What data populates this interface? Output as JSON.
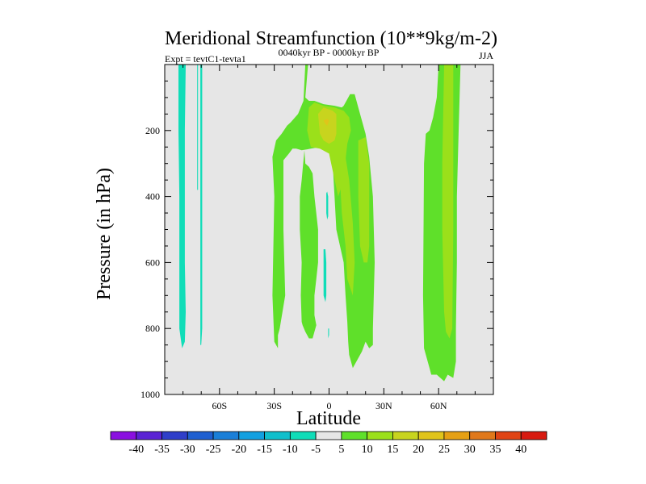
{
  "chart_data": {
    "type": "contour",
    "title": "Meridional Streamfunction (10**9kg/m-2)",
    "subtitle_left": "Expt = tevtC1-tevta1",
    "subtitle_center": "0040kyr BP - 0000kyr BP",
    "subtitle_right": "JJA",
    "xlabel": "Latitude",
    "ylabel": "Pressure (in hPa)",
    "xlim": [
      -90,
      90
    ],
    "ylim": [
      1000,
      0
    ],
    "x_ticks": [
      {
        "value": -60,
        "label": "60S"
      },
      {
        "value": -30,
        "label": "30S"
      },
      {
        "value": 0,
        "label": "0"
      },
      {
        "value": 30,
        "label": "30N"
      },
      {
        "value": 60,
        "label": "60N"
      }
    ],
    "y_ticks": [
      {
        "value": 200,
        "label": "200"
      },
      {
        "value": 400,
        "label": "400"
      },
      {
        "value": 600,
        "label": "600"
      },
      {
        "value": 800,
        "label": "800"
      },
      {
        "value": 1000,
        "label": "1000"
      }
    ],
    "background_color": "#e6e6e6",
    "contour_regions": [
      {
        "name": "sh-polar-negative-1",
        "level": -7.5,
        "polygon": [
          [
            -82.5,
            0
          ],
          [
            -78.5,
            0
          ],
          [
            -79,
            200
          ],
          [
            -79,
            600
          ],
          [
            -78.5,
            750
          ],
          [
            -79,
            840
          ],
          [
            -80.5,
            860
          ],
          [
            -82,
            800
          ],
          [
            -82,
            400
          ],
          [
            -82.5,
            200
          ]
        ]
      },
      {
        "name": "sh-polar-negative-2",
        "level": -7.5,
        "polygon": [
          [
            -70.5,
            0
          ],
          [
            -69.5,
            0
          ],
          [
            -69.5,
            400
          ],
          [
            -69.5,
            800
          ],
          [
            -70,
            850
          ],
          [
            -70.5,
            850
          ],
          [
            -70.5,
            400
          ]
        ]
      },
      {
        "name": "sh-polar-negative-sliver",
        "level": -7.5,
        "polygon": [
          [
            -72.2,
            0
          ],
          [
            -71.8,
            0
          ],
          [
            -71.8,
            380
          ],
          [
            -72.2,
            380
          ]
        ]
      },
      {
        "name": "eq-positive-main",
        "level": 7.5,
        "polygon": [
          [
            -13,
            0
          ],
          [
            -11.5,
            0
          ],
          [
            -13,
            100
          ],
          [
            -11,
            110
          ],
          [
            -8,
            110
          ],
          [
            -3,
            120
          ],
          [
            3,
            125
          ],
          [
            7,
            130
          ],
          [
            8,
            125
          ],
          [
            9.5,
            110
          ],
          [
            11.5,
            90
          ],
          [
            14,
            90
          ],
          [
            17,
            150
          ],
          [
            20,
            210
          ],
          [
            22,
            280
          ],
          [
            24,
            400
          ],
          [
            25,
            600
          ],
          [
            24,
            800
          ],
          [
            24,
            850
          ],
          [
            22,
            860
          ],
          [
            20,
            840
          ],
          [
            18,
            870
          ],
          [
            15,
            900
          ],
          [
            13,
            920
          ],
          [
            11,
            880
          ],
          [
            10.5,
            840
          ],
          [
            10,
            780
          ],
          [
            9,
            700
          ],
          [
            8,
            600
          ],
          [
            4,
            500
          ],
          [
            3,
            400
          ],
          [
            2,
            300
          ],
          [
            0.5,
            260
          ],
          [
            -2,
            250
          ],
          [
            -5,
            250
          ],
          [
            -10,
            255
          ],
          [
            -15,
            260
          ],
          [
            -18,
            255
          ],
          [
            -20,
            255
          ],
          [
            -22,
            270
          ],
          [
            -25,
            290
          ],
          [
            -25,
            500
          ],
          [
            -24,
            700
          ],
          [
            -27,
            800
          ],
          [
            -28,
            820
          ],
          [
            -28,
            860
          ],
          [
            -30,
            840
          ],
          [
            -31,
            700
          ],
          [
            -30,
            400
          ],
          [
            -31,
            280
          ],
          [
            -29,
            230
          ],
          [
            -26,
            210
          ],
          [
            -23,
            185
          ],
          [
            -21,
            175
          ],
          [
            -17,
            150
          ],
          [
            -14,
            110
          ]
        ]
      },
      {
        "name": "eq-positive-lower",
        "level": 7.5,
        "polygon": [
          [
            -13.5,
            260
          ],
          [
            -13,
            300
          ],
          [
            -11,
            310
          ],
          [
            -9,
            330
          ],
          [
            -8,
            400
          ],
          [
            -6,
            500
          ],
          [
            -6,
            600
          ],
          [
            -7,
            650
          ],
          [
            -8,
            700
          ],
          [
            -8,
            760
          ],
          [
            -7,
            790
          ],
          [
            -8,
            810
          ],
          [
            -9,
            830
          ],
          [
            -11,
            830
          ],
          [
            -13,
            810
          ],
          [
            -14.5,
            790
          ],
          [
            -15,
            780
          ],
          [
            -15.5,
            700
          ],
          [
            -15,
            600
          ],
          [
            -16,
            500
          ],
          [
            -16,
            400
          ],
          [
            -15,
            350
          ],
          [
            -14.5,
            320
          ]
        ]
      },
      {
        "name": "nh-positive-band",
        "level": 7.5,
        "polygon": [
          [
            60,
            0
          ],
          [
            72,
            0
          ],
          [
            71,
            200
          ],
          [
            70,
            400
          ],
          [
            70,
            600
          ],
          [
            69.5,
            800
          ],
          [
            69.5,
            900
          ],
          [
            68,
            950
          ],
          [
            65,
            940
          ],
          [
            63,
            960
          ],
          [
            59,
            940
          ],
          [
            56,
            940
          ],
          [
            55,
            920
          ],
          [
            52,
            860
          ],
          [
            51.5,
            700
          ],
          [
            52,
            300
          ],
          [
            53,
            210
          ],
          [
            55,
            200
          ],
          [
            57,
            160
          ],
          [
            59,
            100
          ]
        ]
      },
      {
        "name": "eq-level-12-core",
        "level": 12.5,
        "polygon": [
          [
            -11,
            130
          ],
          [
            -8,
            115
          ],
          [
            -3,
            125
          ],
          [
            3,
            130
          ],
          [
            8,
            140
          ],
          [
            11,
            160
          ],
          [
            12,
            200
          ],
          [
            10,
            240
          ],
          [
            9,
            290
          ],
          [
            8,
            350
          ],
          [
            5,
            400
          ],
          [
            0,
            270
          ],
          [
            -5,
            255
          ],
          [
            -10,
            250
          ],
          [
            -12,
            200
          ]
        ]
      },
      {
        "name": "eq-level-12-lower",
        "level": 12.5,
        "polygon": [
          [
            6,
            280
          ],
          [
            9,
            280
          ],
          [
            11,
            350
          ],
          [
            13,
            480
          ],
          [
            14,
            600
          ],
          [
            13,
            700
          ],
          [
            10,
            650
          ],
          [
            9,
            550
          ],
          [
            7,
            450
          ],
          [
            6,
            350
          ]
        ]
      },
      {
        "name": "nh-level-12-strip",
        "level": 12.5,
        "polygon": [
          [
            16,
            230
          ],
          [
            20,
            220
          ],
          [
            22,
            300
          ],
          [
            22,
            550
          ],
          [
            21,
            600
          ],
          [
            19,
            600
          ],
          [
            17,
            550
          ],
          [
            16,
            400
          ]
        ]
      },
      {
        "name": "nh-level-12-band",
        "level": 12.5,
        "polygon": [
          [
            63,
            0
          ],
          [
            68,
            0
          ],
          [
            68,
            300
          ],
          [
            68,
            500
          ],
          [
            67.5,
            800
          ],
          [
            66,
            830
          ],
          [
            64,
            810
          ],
          [
            63,
            750
          ],
          [
            62,
            500
          ],
          [
            62,
            300
          ]
        ]
      },
      {
        "name": "eq-level-17-core",
        "level": 17.5,
        "polygon": [
          [
            -6,
            150
          ],
          [
            -3,
            130
          ],
          [
            2,
            140
          ],
          [
            4,
            150
          ],
          [
            4,
            210
          ],
          [
            3,
            230
          ],
          [
            0,
            240
          ],
          [
            -3,
            230
          ],
          [
            -5,
            210
          ]
        ]
      },
      {
        "name": "eq-peak-point",
        "level": 22.5,
        "polygon": [
          [
            -3,
            170
          ],
          [
            -1,
            165
          ],
          [
            0,
            170
          ],
          [
            -1,
            185
          ],
          [
            -2,
            180
          ]
        ]
      },
      {
        "name": "eq-negative-spot-1",
        "level": -7.5,
        "polygon": [
          [
            -1.5,
            390
          ],
          [
            -1,
            385
          ],
          [
            -0.5,
            400
          ],
          [
            -0.5,
            460
          ],
          [
            -1,
            470
          ],
          [
            -1.5,
            450
          ]
        ]
      },
      {
        "name": "eq-negative-spot-2",
        "level": -7.5,
        "polygon": [
          [
            -3,
            560
          ],
          [
            -2,
            560
          ],
          [
            -1.5,
            600
          ],
          [
            -1.5,
            700
          ],
          [
            -2,
            720
          ],
          [
            -3,
            700
          ]
        ]
      },
      {
        "name": "eq-negative-spot-3",
        "level": -7.5,
        "polygon": [
          [
            -0.5,
            800
          ],
          [
            0,
            800
          ],
          [
            0,
            820
          ],
          [
            -0.5,
            830
          ]
        ]
      }
    ],
    "colorbar": {
      "levels": [
        "-40",
        "-35",
        "-30",
        "-25",
        "-20",
        "-15",
        "-10",
        "-5",
        "5",
        "10",
        "15",
        "20",
        "25",
        "30",
        "35",
        "40"
      ],
      "colors": [
        "#8a10e0",
        "#5a22d4",
        "#2f3ec9",
        "#1f5fd0",
        "#1a7fd8",
        "#12a0e0",
        "#10bfcc",
        "#10ddb8",
        "#e6e6e6",
        "#5fe02a",
        "#9be01a",
        "#c8d41e",
        "#e0c41a",
        "#e5a014",
        "#e0781a",
        "#e04414",
        "#d81a10"
      ]
    }
  }
}
